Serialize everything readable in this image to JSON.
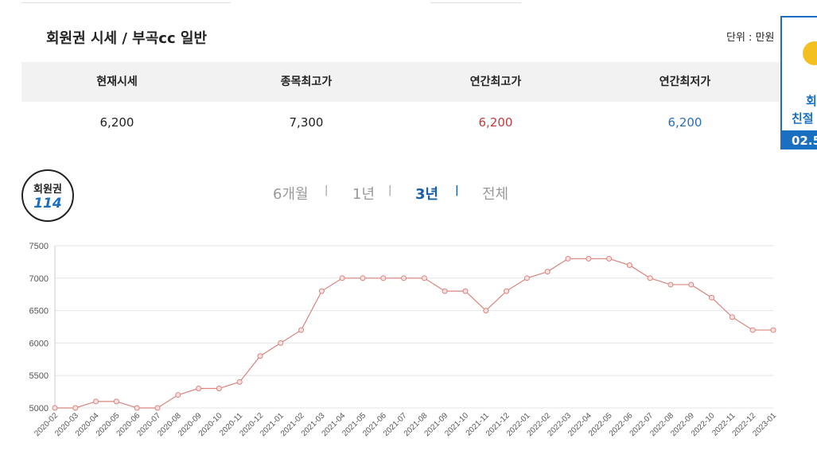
{
  "header": {
    "title": "회원권 시세 / 부곡cc 일반",
    "unit": "단위 : 만원"
  },
  "summary": {
    "columns": [
      "현재시세",
      "종목최고가",
      "연간최고가",
      "연간최저가"
    ],
    "values": [
      "6,200",
      "7,300",
      "6,200",
      "6,200"
    ]
  },
  "logo": {
    "line1": "회원권",
    "line2": "114"
  },
  "periods": {
    "items": [
      "6개월",
      "1년",
      "3년",
      "전체"
    ],
    "separator": "|"
  },
  "ad": {
    "line1": "회",
    "line2": "친절",
    "line3": "02.5"
  },
  "chart_data": {
    "type": "line",
    "categories": [
      "2020-02",
      "2020-03",
      "2020-04",
      "2020-05",
      "2020-06",
      "2020-07",
      "2020-08",
      "2020-09",
      "2020-10",
      "2020-11",
      "2020-12",
      "2021-01",
      "2021-02",
      "2021-03",
      "2021-04",
      "2021-05",
      "2021-06",
      "2021-07",
      "2021-08",
      "2021-09",
      "2021-10",
      "2021-11",
      "2021-12",
      "2022-01",
      "2022-02",
      "2022-03",
      "2022-04",
      "2022-05",
      "2022-06",
      "2022-07",
      "2022-08",
      "2022-09",
      "2022-10",
      "2022-11",
      "2022-12",
      "2023-01"
    ],
    "series": [
      {
        "color": "#d9837e",
        "values": [
          5000,
          5000,
          5100,
          5100,
          5000,
          5000,
          5200,
          5300,
          5300,
          5400,
          5800,
          6000,
          6200,
          6800,
          7000,
          7000,
          7000,
          7000,
          7000,
          6800,
          6800,
          6500,
          6800,
          7000,
          7100,
          7300,
          7300,
          7300,
          7200,
          7000,
          6900,
          6900,
          6700,
          6400,
          6200,
          6200
        ]
      }
    ],
    "ylim": [
      5000,
      7500
    ],
    "yticks": [
      5000,
      5500,
      6000,
      6500,
      7000,
      7500
    ],
    "grid": true
  }
}
